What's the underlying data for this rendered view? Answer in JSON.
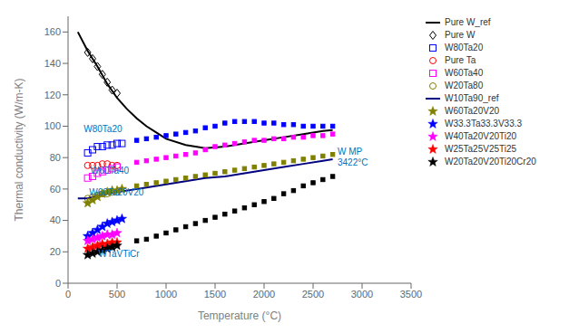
{
  "chart_data": {
    "type": "scatter",
    "xlabel": "Temperature (°C)",
    "ylabel": "Thermal conductivity (W/m-K)",
    "xlim": [
      0,
      3500
    ],
    "ylim": [
      0,
      170
    ],
    "xticks": [
      0,
      500,
      1000,
      1500,
      2000,
      2500,
      3000,
      3500
    ],
    "yticks": [
      0,
      20,
      40,
      60,
      80,
      100,
      120,
      140,
      160
    ],
    "legend": "upper right",
    "annotations": [
      {
        "text": "W80Ta20",
        "x": 160,
        "y": 96,
        "color": "#0070C0"
      },
      {
        "text": "W60Ta40",
        "x": 230,
        "y": 70,
        "color": "#0070C0"
      },
      {
        "text": "W60Ta20V20",
        "x": 215,
        "y": 56,
        "color": "#0070C0"
      },
      {
        "text": "WTaVTiCr",
        "x": 310,
        "y": 17,
        "color": "#0070C0"
      },
      {
        "text": "W MP\n3422°C",
        "x": 2750,
        "y": 82,
        "color": "#0070C0"
      }
    ],
    "series": [
      {
        "name": "Pure W_ref",
        "type": "line",
        "color": "black",
        "x": [
          100,
          200,
          300,
          400,
          500,
          600,
          700,
          800,
          900,
          1000,
          1200,
          1400,
          1600,
          1800,
          2000,
          2200,
          2400,
          2600,
          2700
        ],
        "values": [
          160,
          148,
          138,
          127,
          118,
          111,
          105,
          100,
          96,
          92,
          88,
          86,
          87,
          89,
          91,
          93,
          95,
          97,
          97.5
        ]
      },
      {
        "name": "Pure W",
        "type": "scatter",
        "marker": "open_diamond",
        "color": "black",
        "x": [
          200,
          250,
          300,
          350,
          400,
          450,
          500
        ],
        "values": [
          147,
          143,
          138,
          133,
          128,
          123,
          121
        ]
      },
      {
        "name": "W80Ta20",
        "type": "scatter",
        "marker": "open_square",
        "color": "blue",
        "x": [
          200,
          250,
          300,
          350,
          400,
          450,
          500,
          550
        ],
        "values": [
          83,
          85,
          87,
          87,
          88,
          88,
          89,
          89
        ]
      },
      {
        "name": "Pure Ta",
        "type": "scatter",
        "marker": "open_circle",
        "color": "red",
        "x": [
          200,
          250,
          300,
          350,
          400,
          450,
          500
        ],
        "values": [
          75,
          75,
          75,
          76,
          76,
          75,
          75
        ]
      },
      {
        "name": "W60Ta40",
        "type": "scatter",
        "marker": "open_square",
        "color": "magenta",
        "x": [
          200,
          250,
          300,
          350,
          400,
          450,
          500
        ],
        "values": [
          67,
          68,
          70,
          71,
          72,
          73,
          74
        ]
      },
      {
        "name": "W20Ta80",
        "type": "scatter",
        "marker": "open_circle",
        "color": "#808000",
        "x": [
          200,
          250,
          300,
          350,
          400,
          450,
          500
        ],
        "values": [
          54,
          55,
          56,
          57,
          57,
          58,
          58
        ]
      },
      {
        "name": "W10Ta90_ref",
        "type": "line",
        "color": "#000080",
        "x": [
          100,
          200,
          400,
          600,
          800,
          1000,
          1200,
          1400,
          1600,
          1800,
          2000,
          2200,
          2400,
          2600,
          2700
        ],
        "values": [
          54,
          54,
          57,
          59,
          61,
          63,
          65,
          67,
          68,
          70,
          72,
          74,
          76,
          78,
          79
        ]
      },
      {
        "name": "W60Ta20V20",
        "type": "scatter",
        "marker": "star",
        "color": "#808000",
        "x": [
          200,
          250,
          300,
          350,
          400,
          450,
          500,
          550
        ],
        "values": [
          51,
          53,
          55,
          57,
          58,
          59,
          59,
          60
        ]
      },
      {
        "name": "W33.3Ta33.3V33.3",
        "type": "scatter",
        "marker": "star",
        "color": "blue",
        "x": [
          200,
          250,
          300,
          350,
          400,
          450,
          500,
          550
        ],
        "values": [
          30,
          32,
          34,
          36,
          38,
          39,
          40,
          41
        ]
      },
      {
        "name": "W40Ta20V20Ti20",
        "type": "scatter",
        "marker": "star",
        "color": "magenta",
        "x": [
          200,
          250,
          300,
          350,
          400,
          450,
          500
        ],
        "values": [
          27,
          28,
          29,
          30,
          31,
          31,
          32
        ]
      },
      {
        "name": "W25Ta25V25Ti25",
        "type": "scatter",
        "marker": "star",
        "color": "red",
        "x": [
          200,
          250,
          300,
          350,
          400,
          450,
          500
        ],
        "values": [
          22,
          23,
          24,
          25,
          25,
          26,
          26
        ]
      },
      {
        "name": "W20Ta20V20Ti20Cr20",
        "type": "scatter",
        "marker": "star",
        "color": "black",
        "x": [
          200,
          250,
          300,
          350,
          400,
          450,
          500
        ],
        "values": [
          18,
          19,
          20,
          21,
          22,
          23,
          24
        ]
      },
      {
        "type": "scatter",
        "marker": "square",
        "color": "blue",
        "x": [
          700,
          800,
          900,
          1000,
          1100,
          1200,
          1300,
          1400,
          1500,
          1600,
          1700,
          1800,
          1900,
          2000,
          2100,
          2200,
          2300,
          2400,
          2500,
          2600,
          2700
        ],
        "values": [
          91,
          92,
          93,
          94,
          95,
          96,
          97,
          99,
          100,
          102,
          103,
          103,
          103,
          102,
          102,
          101,
          101,
          100,
          100,
          100,
          100
        ]
      },
      {
        "type": "scatter",
        "marker": "square",
        "color": "magenta",
        "x": [
          700,
          800,
          900,
          1000,
          1100,
          1200,
          1300,
          1400,
          1500,
          1600,
          1700,
          1800,
          1900,
          2000,
          2100,
          2200,
          2300,
          2400,
          2500,
          2600,
          2700
        ],
        "values": [
          77,
          78,
          79,
          80,
          81,
          82,
          83,
          85,
          87,
          88,
          89,
          90,
          91,
          91,
          92,
          92,
          93,
          93,
          94,
          94,
          95
        ]
      },
      {
        "type": "scatter",
        "marker": "square",
        "color": "#808000",
        "x": [
          700,
          800,
          900,
          1000,
          1100,
          1200,
          1300,
          1400,
          1500,
          1600,
          1700,
          1800,
          1900,
          2000,
          2100,
          2200,
          2300,
          2400,
          2500,
          2600,
          2700
        ],
        "values": [
          62,
          63,
          64,
          65,
          66,
          67,
          68,
          69,
          70,
          71,
          72,
          73,
          74,
          75,
          76,
          77,
          78,
          79,
          80,
          81,
          82
        ]
      },
      {
        "type": "scatter",
        "marker": "square",
        "color": "black",
        "x": [
          700,
          800,
          900,
          1000,
          1100,
          1200,
          1300,
          1400,
          1500,
          1600,
          1700,
          1800,
          1900,
          2000,
          2100,
          2200,
          2300,
          2400,
          2500,
          2600,
          2700
        ],
        "values": [
          27,
          28,
          30,
          32,
          34,
          36,
          38,
          40,
          42,
          44,
          46,
          48,
          50,
          52,
          54,
          57,
          59,
          62,
          64,
          66,
          68
        ]
      }
    ]
  }
}
